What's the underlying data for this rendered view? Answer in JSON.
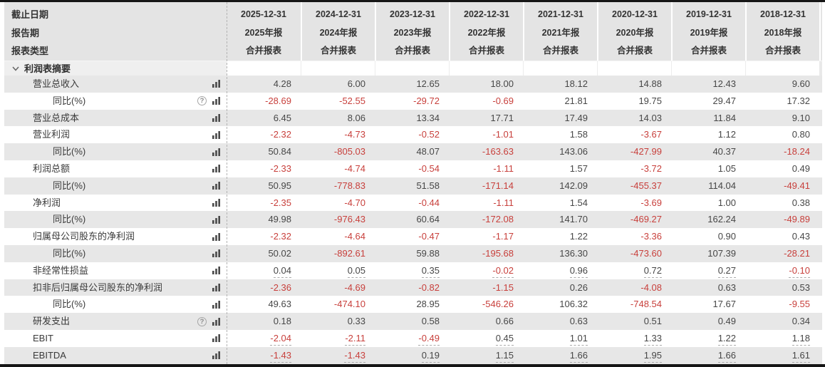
{
  "colors": {
    "negative_value": "#c8403c",
    "value_text": "#474747",
    "label_text": "#3a3a3a",
    "header_bg": "#e4e4e4",
    "row_stripe": "#e7e7e7",
    "section_bg": "#efefef",
    "frame_border": "#161616",
    "dotted_divider": "#b3b3b3"
  },
  "icons": {
    "help_glyph": "?"
  },
  "table": {
    "header": {
      "row_labels": [
        "截止日期",
        "报告期",
        "报表类型"
      ],
      "columns": [
        {
          "date": "2025-12-31",
          "period": "2025年报",
          "type": "合并报表"
        },
        {
          "date": "2024-12-31",
          "period": "2024年报",
          "type": "合并报表"
        },
        {
          "date": "2023-12-31",
          "period": "2023年报",
          "type": "合并报表"
        },
        {
          "date": "2022-12-31",
          "period": "2022年报",
          "type": "合并报表"
        },
        {
          "date": "2021-12-31",
          "period": "2021年报",
          "type": "合并报表"
        },
        {
          "date": "2020-12-31",
          "period": "2020年报",
          "type": "合并报表"
        },
        {
          "date": "2019-12-31",
          "period": "2019年报",
          "type": "合并报表"
        },
        {
          "date": "2018-12-31",
          "period": "2018年报",
          "type": "合并报表"
        }
      ]
    },
    "section": {
      "label": "利润表摘要"
    },
    "rows": [
      {
        "label": "营业总收入",
        "indent": 1,
        "help": false,
        "underline": false,
        "values": [
          "4.28",
          "6.00",
          "12.65",
          "18.00",
          "18.12",
          "14.88",
          "12.43",
          "9.60"
        ]
      },
      {
        "label": "同比(%)",
        "indent": 2,
        "help": true,
        "underline": false,
        "values": [
          "-28.69",
          "-52.55",
          "-29.72",
          "-0.69",
          "21.81",
          "19.75",
          "29.47",
          "17.32"
        ]
      },
      {
        "label": "营业总成本",
        "indent": 1,
        "help": false,
        "underline": false,
        "values": [
          "6.45",
          "8.06",
          "13.34",
          "17.71",
          "17.49",
          "14.03",
          "11.84",
          "9.10"
        ]
      },
      {
        "label": "营业利润",
        "indent": 1,
        "help": false,
        "underline": false,
        "values": [
          "-2.32",
          "-4.73",
          "-0.52",
          "-1.01",
          "1.58",
          "-3.67",
          "1.12",
          "0.80"
        ]
      },
      {
        "label": "同比(%)",
        "indent": 2,
        "help": false,
        "underline": false,
        "values": [
          "50.84",
          "-805.03",
          "48.07",
          "-163.63",
          "143.06",
          "-427.99",
          "40.37",
          "-18.24"
        ]
      },
      {
        "label": "利润总额",
        "indent": 1,
        "help": false,
        "underline": false,
        "values": [
          "-2.33",
          "-4.74",
          "-0.54",
          "-1.11",
          "1.57",
          "-3.72",
          "1.05",
          "0.49"
        ]
      },
      {
        "label": "同比(%)",
        "indent": 2,
        "help": false,
        "underline": false,
        "values": [
          "50.95",
          "-778.83",
          "51.58",
          "-171.14",
          "142.09",
          "-455.37",
          "114.04",
          "-49.41"
        ]
      },
      {
        "label": "净利润",
        "indent": 1,
        "help": false,
        "underline": false,
        "values": [
          "-2.35",
          "-4.70",
          "-0.44",
          "-1.11",
          "1.54",
          "-3.69",
          "1.00",
          "0.38"
        ]
      },
      {
        "label": "同比(%)",
        "indent": 2,
        "help": false,
        "underline": false,
        "values": [
          "49.98",
          "-976.43",
          "60.64",
          "-172.08",
          "141.70",
          "-469.27",
          "162.24",
          "-49.89"
        ]
      },
      {
        "label": "归属母公司股东的净利润",
        "indent": 1,
        "help": false,
        "underline": false,
        "values": [
          "-2.32",
          "-4.64",
          "-0.47",
          "-1.17",
          "1.22",
          "-3.36",
          "0.90",
          "0.43"
        ]
      },
      {
        "label": "同比(%)",
        "indent": 2,
        "help": false,
        "underline": false,
        "values": [
          "50.02",
          "-892.61",
          "59.88",
          "-195.68",
          "136.30",
          "-473.60",
          "107.39",
          "-28.21"
        ]
      },
      {
        "label": "非经常性损益",
        "indent": 1,
        "help": false,
        "underline": true,
        "values": [
          "0.04",
          "0.05",
          "0.35",
          "-0.02",
          "0.96",
          "0.72",
          "0.27",
          "-0.10"
        ]
      },
      {
        "label": "扣非后归属母公司股东的净利润",
        "indent": 1,
        "help": false,
        "underline": false,
        "values": [
          "-2.36",
          "-4.69",
          "-0.82",
          "-1.15",
          "0.26",
          "-4.08",
          "0.63",
          "0.53"
        ]
      },
      {
        "label": "同比(%)",
        "indent": 2,
        "help": false,
        "underline": false,
        "values": [
          "49.63",
          "-474.10",
          "28.95",
          "-546.26",
          "106.32",
          "-748.54",
          "17.67",
          "-9.55"
        ]
      },
      {
        "label": "研发支出",
        "indent": 1,
        "help": true,
        "underline": false,
        "values": [
          "0.18",
          "0.33",
          "0.58",
          "0.66",
          "0.63",
          "0.51",
          "0.49",
          "0.34"
        ]
      },
      {
        "label": "EBIT",
        "indent": 1,
        "help": false,
        "underline": true,
        "values": [
          "-2.04",
          "-2.11",
          "-0.49",
          "0.45",
          "1.01",
          "1.33",
          "1.22",
          "1.18"
        ]
      },
      {
        "label": "EBITDA",
        "indent": 1,
        "help": false,
        "underline": true,
        "values": [
          "-1.43",
          "-1.43",
          "0.19",
          "1.15",
          "1.66",
          "1.95",
          "1.66",
          "1.61"
        ]
      }
    ]
  }
}
